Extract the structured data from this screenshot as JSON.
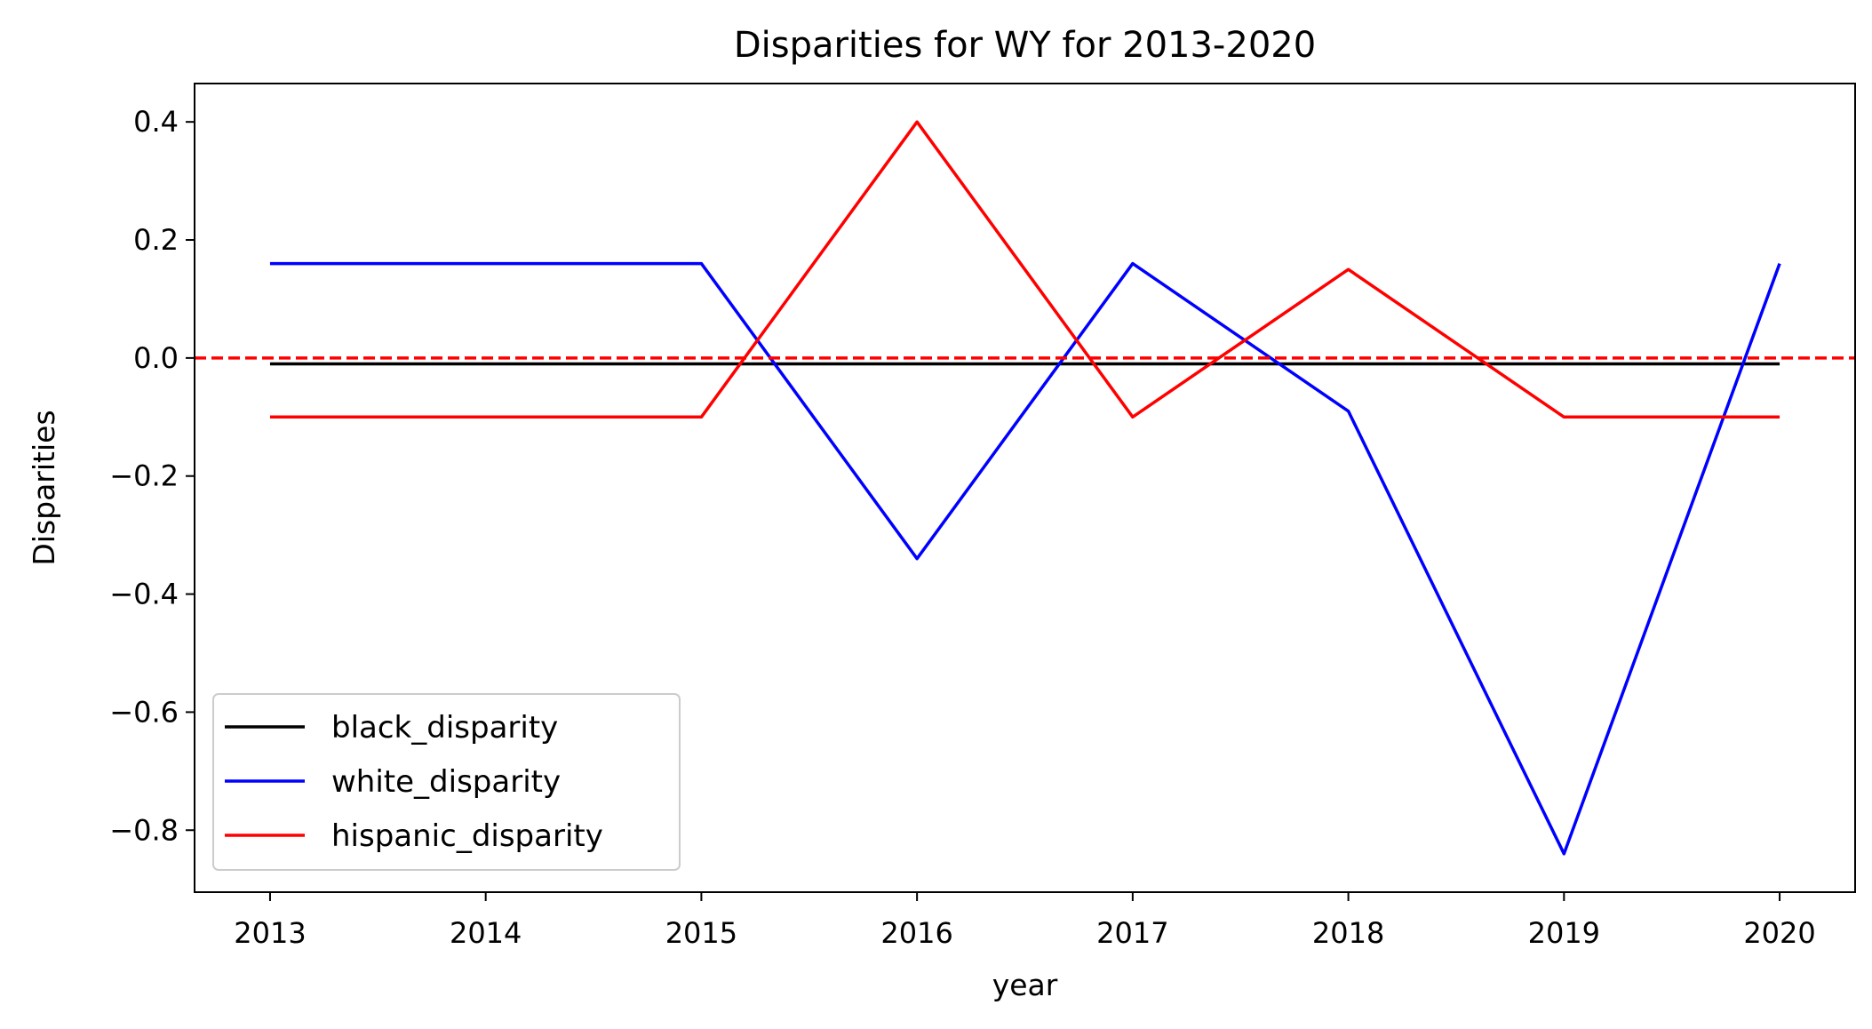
{
  "chart_data": {
    "type": "line",
    "title": "Disparities for WY for 2013-2020",
    "xlabel": "year",
    "ylabel": "Disparities",
    "x": [
      2013,
      2014,
      2015,
      2016,
      2017,
      2018,
      2019,
      2020
    ],
    "xlim": [
      2012.65,
      2020.35
    ],
    "ylim": [
      -0.905,
      0.465
    ],
    "x_ticks": [
      2013,
      2014,
      2015,
      2016,
      2017,
      2018,
      2019,
      2020
    ],
    "x_tick_labels": [
      "2013",
      "2014",
      "2015",
      "2016",
      "2017",
      "2018",
      "2019",
      "2020"
    ],
    "y_ticks": [
      0.4,
      0.2,
      0.0,
      -0.2,
      -0.4,
      -0.6,
      -0.8
    ],
    "y_tick_labels": [
      "0.4",
      "0.2",
      "0.0",
      "−0.2",
      "−0.4",
      "−0.6",
      "−0.8"
    ],
    "grid": false,
    "legend_position": "lower-left",
    "series": [
      {
        "name": "black_disparity",
        "color": "#000000",
        "values": [
          -0.01,
          -0.01,
          -0.01,
          -0.01,
          -0.01,
          -0.01,
          -0.01,
          -0.01
        ]
      },
      {
        "name": "white_disparity",
        "color": "#0000ff",
        "values": [
          0.16,
          0.16,
          0.16,
          -0.34,
          0.16,
          -0.09,
          -0.84,
          0.16
        ]
      },
      {
        "name": "hispanic_disparity",
        "color": "#ff0000",
        "values": [
          -0.1,
          -0.1,
          -0.1,
          0.4,
          -0.1,
          0.15,
          -0.1,
          -0.1
        ]
      }
    ],
    "reference_line": {
      "y": 0.0,
      "color": "#ff0000",
      "style": "dashed"
    }
  }
}
